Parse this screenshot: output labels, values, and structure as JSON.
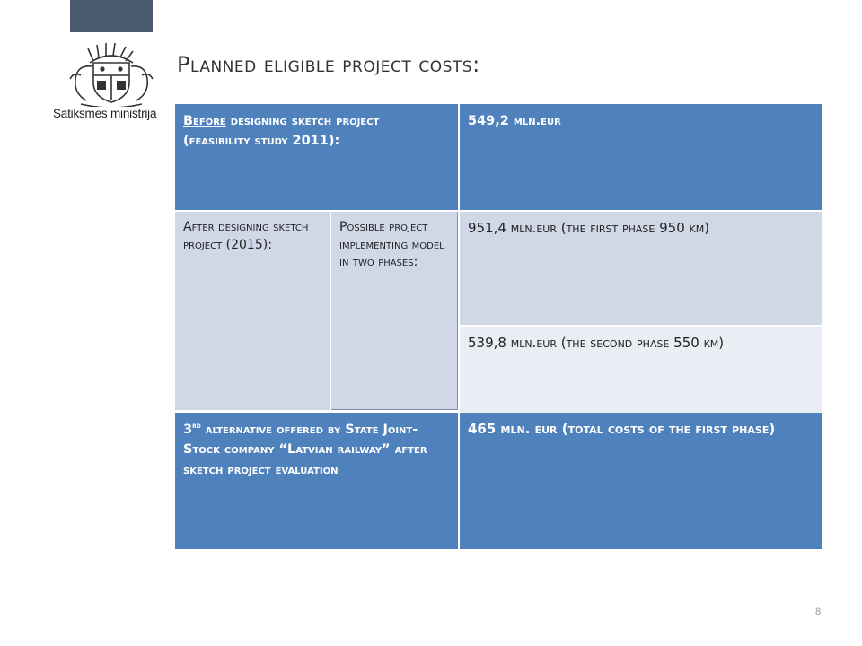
{
  "organization": "Satiksmes ministrija",
  "slide_title": "Planned eligible project costs:",
  "table": {
    "r1c1_underlined": "Before",
    "r1c1_rest": " designing sketch project (feasibility study 2011):",
    "r1c2": "549,2 mln.eur",
    "r2c1": "After designing sketch project (2015):",
    "r2c2": "Possible project implementing model in two phases:",
    "r2c3a": "951,4 mln.eur (the first phase 950 km)",
    "r2c3b": "539,8 mln.eur (the second phase 550 km)",
    "r3c1_ord": "3",
    "r3c1_sup": "rd",
    "r3c1_rest": " alternative offered by State Joint-Stock company “Latvian railway”  after sketch project evaluation",
    "r3c2": "465 mln. eur (total costs of the first phase)"
  },
  "page_number": "8",
  "colors": {
    "table_header_blue": "#4f81bd",
    "row_light": "#d0d8e8",
    "row_lighter": "#e9edf4",
    "top_bar": "#4a5b6e"
  }
}
